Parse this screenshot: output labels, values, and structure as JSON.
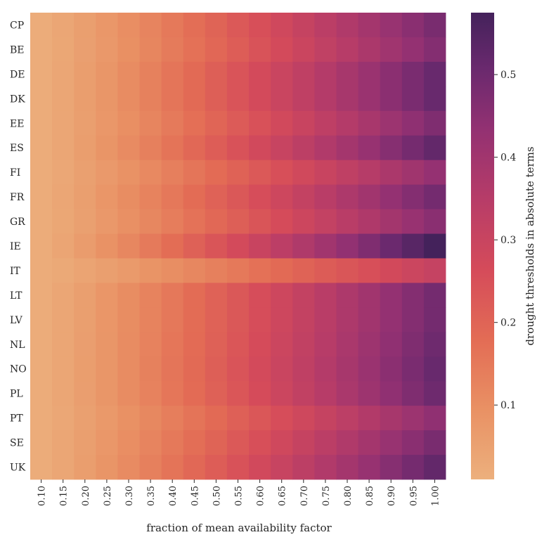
{
  "chart_data": {
    "type": "heatmap",
    "title": "",
    "xlabel": "fraction of mean availability factor",
    "ylabel": "",
    "colorbar_label": "drought thresholds in absolute terms",
    "colormap": "flare",
    "color_range": [
      0.01,
      0.575
    ],
    "colorbar_ticks": [
      0.1,
      0.2,
      0.3,
      0.4,
      0.5
    ],
    "colorbar_tick_labels": [
      "0.1",
      "0.2",
      "0.3",
      "0.4",
      "0.5"
    ],
    "x_tick_labels": [
      "0.10",
      "0.15",
      "0.20",
      "0.25",
      "0.30",
      "0.35",
      "0.40",
      "0.45",
      "0.50",
      "0.55",
      "0.60",
      "0.65",
      "0.70",
      "0.75",
      "0.80",
      "0.85",
      "0.90",
      "0.95",
      "1.00"
    ],
    "y_tick_labels": [
      "CP",
      "BE",
      "DE",
      "DK",
      "EE",
      "ES",
      "FI",
      "FR",
      "GR",
      "IE",
      "IT",
      "LT",
      "LV",
      "NL",
      "NO",
      "PL",
      "PT",
      "SE",
      "UK"
    ],
    "rows": [
      {
        "country": "CP",
        "max": 0.48
      },
      {
        "country": "BE",
        "max": 0.46
      },
      {
        "country": "DE",
        "max": 0.51
      },
      {
        "country": "DK",
        "max": 0.51
      },
      {
        "country": "EE",
        "max": 0.47
      },
      {
        "country": "ES",
        "max": 0.52
      },
      {
        "country": "FI",
        "max": 0.43
      },
      {
        "country": "FR",
        "max": 0.49
      },
      {
        "country": "GR",
        "max": 0.45
      },
      {
        "country": "IE",
        "max": 0.575
      },
      {
        "country": "IT",
        "max": 0.31
      },
      {
        "country": "LT",
        "max": 0.49
      },
      {
        "country": "LV",
        "max": 0.49
      },
      {
        "country": "NL",
        "max": 0.5
      },
      {
        "country": "NO",
        "max": 0.51
      },
      {
        "country": "PL",
        "max": 0.5
      },
      {
        "country": "PT",
        "max": 0.44
      },
      {
        "country": "SE",
        "max": 0.48
      },
      {
        "country": "UK",
        "max": 0.52
      }
    ]
  }
}
